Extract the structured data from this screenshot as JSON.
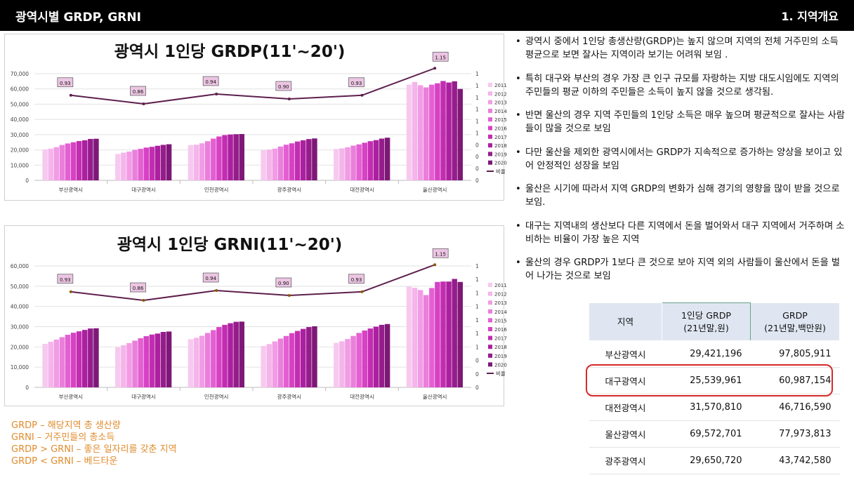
{
  "header": {
    "title": "광역시별 GRDP, GRNI",
    "section": "1. 지역개요"
  },
  "charts": [
    {
      "type": "bar",
      "title": "광역시 1인당 GRDP(11'~20')",
      "categories": [
        "부산광역시",
        "대구광역시",
        "인천광역시",
        "광주광역시",
        "대전광역시",
        "울산광역시"
      ],
      "years": [
        "2011",
        "2012",
        "2013",
        "2014",
        "2015",
        "2016",
        "2017",
        "2018",
        "2019",
        "2020"
      ],
      "ylim": [
        0,
        70000
      ],
      "yticks": [
        "70,000",
        "60,000",
        "50,000",
        "40,000",
        "30,000",
        "20,000",
        "10,000",
        "0"
      ],
      "y2ticks": [
        "1",
        "1",
        "1",
        "1",
        "1",
        "1",
        "0",
        "0",
        "0",
        "0"
      ],
      "values": [
        [
          20300,
          20800,
          21800,
          23200,
          24200,
          25000,
          25800,
          26300,
          27200,
          27300
        ],
        [
          17300,
          18200,
          18900,
          20000,
          20700,
          21500,
          22000,
          22700,
          23300,
          23700
        ],
        [
          23200,
          23400,
          24300,
          25700,
          27400,
          28800,
          29700,
          30100,
          30300,
          30400
        ],
        [
          19800,
          20200,
          20800,
          22200,
          23400,
          24300,
          25500,
          26300,
          27100,
          27500
        ],
        [
          20600,
          21000,
          21700,
          22800,
          23600,
          24700,
          25700,
          26400,
          27400,
          28000
        ],
        [
          62800,
          64600,
          62400,
          61000,
          62800,
          63700,
          65200,
          64200,
          65000,
          60000
        ]
      ],
      "ratio_name": "비율",
      "ratio": [
        "0.93",
        "0.86",
        "0.94",
        "0.90",
        "0.93",
        "1.15"
      ],
      "ratio_values": [
        0.93,
        0.86,
        0.94,
        0.9,
        0.93,
        1.15
      ]
    },
    {
      "type": "bar",
      "title": "광역시 1인당 GRNI(11'~20')",
      "categories": [
        "부산광역시",
        "대구광역시",
        "인천광역시",
        "광주광역시",
        "대전광역시",
        "울산광역시"
      ],
      "years": [
        "2011",
        "2012",
        "2013",
        "2014",
        "2015",
        "2016",
        "2017",
        "2018",
        "2019",
        "2020"
      ],
      "ylim": [
        0,
        60000
      ],
      "yticks": [
        "60,000",
        "50,000",
        "40,000",
        "30,000",
        "20,000",
        "10,000",
        "0"
      ],
      "y2ticks": [
        "1",
        "1",
        "1",
        "1",
        "1",
        "1",
        "1",
        "0",
        "0",
        "0"
      ],
      "values": [
        [
          21500,
          22500,
          23600,
          24800,
          26000,
          27000,
          27700,
          28400,
          29100,
          29200
        ],
        [
          19800,
          20800,
          21900,
          23100,
          24300,
          25300,
          26100,
          26600,
          27400,
          27600
        ],
        [
          23800,
          24500,
          25500,
          26900,
          28300,
          29800,
          30900,
          31700,
          32400,
          32500
        ],
        [
          20500,
          21400,
          22700,
          24100,
          25400,
          26800,
          27900,
          28900,
          29800,
          30200
        ],
        [
          22000,
          22800,
          23900,
          25400,
          26900,
          28100,
          29100,
          30000,
          30900,
          31300
        ],
        [
          49800,
          49200,
          48100,
          45600,
          49100,
          52100,
          52300,
          52300,
          53600,
          52100
        ]
      ],
      "ratio_name": "비율",
      "ratio": [
        "0.93",
        "0.86",
        "0.94",
        "0.90",
        "0.93",
        "1.15"
      ],
      "ratio_values": [
        0.93,
        0.86,
        0.94,
        0.9,
        0.93,
        1.15
      ]
    }
  ],
  "bar_colors": [
    "#f7c9ef",
    "#f4b5ea",
    "#f19ce4",
    "#ea7fdb",
    "#e45fd2",
    "#d642c3",
    "#c22db1",
    "#ab209f",
    "#961c8c",
    "#7e1877"
  ],
  "ratio_line_color": "#5d1f4d",
  "ratio_label_bg": "#ecc5e3",
  "bullets": [
    "광역시 중에서 1인당 총생산량(GRDP)는 높지 않으며 지역의 전체 거주민의 소득 평균으로 보면 잘사는 지역이라 보기는 어려워 보임 .",
    "특히 대구와 부산의 경우 가장 큰 인구 규모를 자랑하는 지방 대도시임에도 지역의 주민들의 평균 이하의 주민들은 소득이 높지 않을 것으로 생각됨.",
    "반면 울산의 경우 지역 주민들의 1인당 소득은 매우 높으며 평균적으로 잘사는 사람들이 많을 것으로 보임",
    "다만 울산을 제외한 광역시에서는 GRDP가 지속적으로 증가하는 양상을 보이고 있어 안정적인 성장을 보임",
    "울산은 시기에 따라서 지역 GRDP의 변화가 심해 경기의 영향을 많이 받을 것으로 보임.",
    "대구는 지역내의 생산보다 다른 지역에서 돈을 벌어와서 대구 지역에서 거주하며 소비하는 비율이 가장 높은 지역",
    "울산의 경우 GRDP가 1보다 큰 것으로 보아 지역 외의 사람들이 울산에서 돈을 벌어 나가는 것으로 보임"
  ],
  "table": {
    "headers": [
      "지역",
      "1인당 GRDP\n(21년말,원)",
      "GRDP\n(21년말,백만원)"
    ],
    "rows": [
      [
        "부산광역시",
        "29,421,196",
        "97,805,911"
      ],
      [
        "대구광역시",
        "25,539,961",
        "60,987,154"
      ],
      [
        "대전광역시",
        "31,570,810",
        "46,716,590"
      ],
      [
        "울산광역시",
        "69,572,701",
        "77,973,813"
      ],
      [
        "광주광역시",
        "29,650,720",
        "43,742,580"
      ]
    ]
  },
  "notes": [
    "GRDP – 해당지역 총 생산량",
    "GRNI – 거주민들의 총소득",
    "GRDP > GRNI – 좋은 일자리를 갖춘 지역",
    "GRDP < GRNI – 베드타운"
  ]
}
